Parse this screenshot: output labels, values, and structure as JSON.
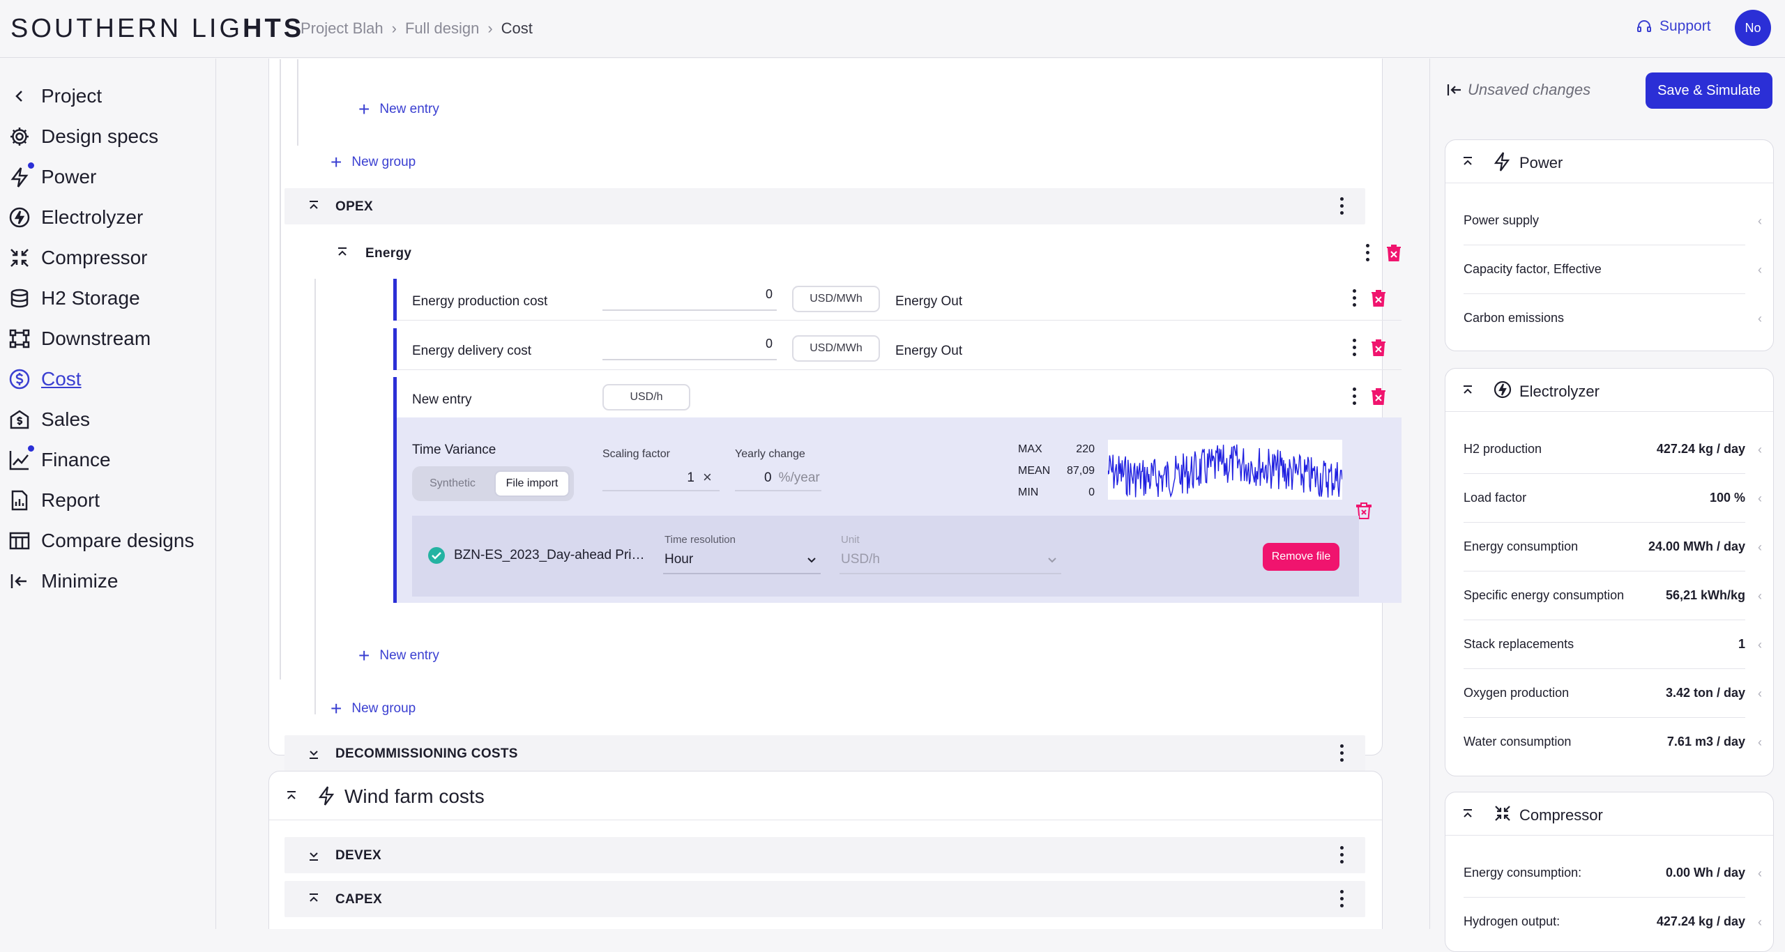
{
  "header": {
    "logo_left": "SOUTHERN LIG",
    "logo_right": "HTS",
    "breadcrumbs": [
      "Project Blah",
      "Full design",
      "Cost"
    ],
    "support": "Support",
    "avatar": "No"
  },
  "sidebar": {
    "items": [
      {
        "label": "Project",
        "icon": "chevron-left-icon"
      },
      {
        "label": "Design specs",
        "icon": "gear-icon"
      },
      {
        "label": "Power",
        "icon": "bolt-icon"
      },
      {
        "label": "Electrolyzer",
        "icon": "electrolyzer-icon"
      },
      {
        "label": "Compressor",
        "icon": "compressor-icon"
      },
      {
        "label": "H2 Storage",
        "icon": "database-icon"
      },
      {
        "label": "Downstream",
        "icon": "network-icon"
      },
      {
        "label": "Cost",
        "icon": "dollar-icon"
      },
      {
        "label": "Sales",
        "icon": "sales-icon"
      },
      {
        "label": "Finance",
        "icon": "chart-icon"
      },
      {
        "label": "Report",
        "icon": "report-icon"
      },
      {
        "label": "Compare designs",
        "icon": "table-icon"
      },
      {
        "label": "Minimize",
        "icon": "collapse-icon"
      }
    ],
    "active": "Cost"
  },
  "main": {
    "new_entry": "New entry",
    "new_group": "New group",
    "opex": {
      "title": "OPEX",
      "group": "Energy",
      "entries": [
        {
          "label": "Energy production cost",
          "value": "0",
          "unit": "USD/MWh",
          "basis": "Energy Out"
        },
        {
          "label": "Energy delivery cost",
          "value": "0",
          "unit": "USD/MWh",
          "basis": "Energy Out"
        },
        {
          "label": "New entry",
          "unit": "USD/h"
        }
      ],
      "time_variance": {
        "title": "Time Variance",
        "options": [
          "Synthetic",
          "File import"
        ],
        "selected": "File import",
        "scaling_label": "Scaling factor",
        "scaling_value": "1",
        "yearly_label": "Yearly change",
        "yearly_value": "0",
        "yearly_unit": "%/year",
        "stats": [
          {
            "k": "MAX",
            "v": "220"
          },
          {
            "k": "MEAN",
            "v": "87,09"
          },
          {
            "k": "MIN",
            "v": "0"
          }
        ],
        "file_name": "BZN-ES_2023_Day-ahead Pri…",
        "time_res_label": "Time resolution",
        "time_res_value": "Hour",
        "unit_label": "Unit",
        "unit_value": "USD/h",
        "remove": "Remove file"
      }
    },
    "decommissioning": "DECOMMISSIONING COSTS",
    "wind": {
      "title": "Wind farm costs",
      "devex": "DEVEX",
      "capex": "CAPEX"
    }
  },
  "right": {
    "unsaved": "Unsaved changes",
    "save": "Save & Simulate",
    "power": {
      "title": "Power",
      "rows": [
        {
          "k": "Power supply",
          "v": ""
        },
        {
          "k": "Capacity factor, Effective",
          "v": ""
        },
        {
          "k": "Carbon emissions",
          "v": ""
        }
      ]
    },
    "electrolyzer": {
      "title": "Electrolyzer",
      "rows": [
        {
          "k": "H2 production",
          "v": "427.24 kg / day"
        },
        {
          "k": "Load factor",
          "v": "100 %"
        },
        {
          "k": "Energy consumption",
          "v": "24.00 MWh / day"
        },
        {
          "k": "Specific energy consumption",
          "v": "56,21 kWh/kg"
        },
        {
          "k": "Stack replacements",
          "v": "1"
        },
        {
          "k": "Oxygen production",
          "v": "3.42 ton / day"
        },
        {
          "k": "Water consumption",
          "v": "7.61 m3 / day"
        }
      ]
    },
    "compressor": {
      "title": "Compressor",
      "rows": [
        {
          "k": "Energy consumption:",
          "v": "0.00 Wh / day"
        },
        {
          "k": "Hydrogen output:",
          "v": "427.24 kg / day"
        }
      ]
    }
  },
  "colors": {
    "accent": "#2b2fd6",
    "danger": "#f0146e",
    "panel": "#e6e7f7"
  }
}
